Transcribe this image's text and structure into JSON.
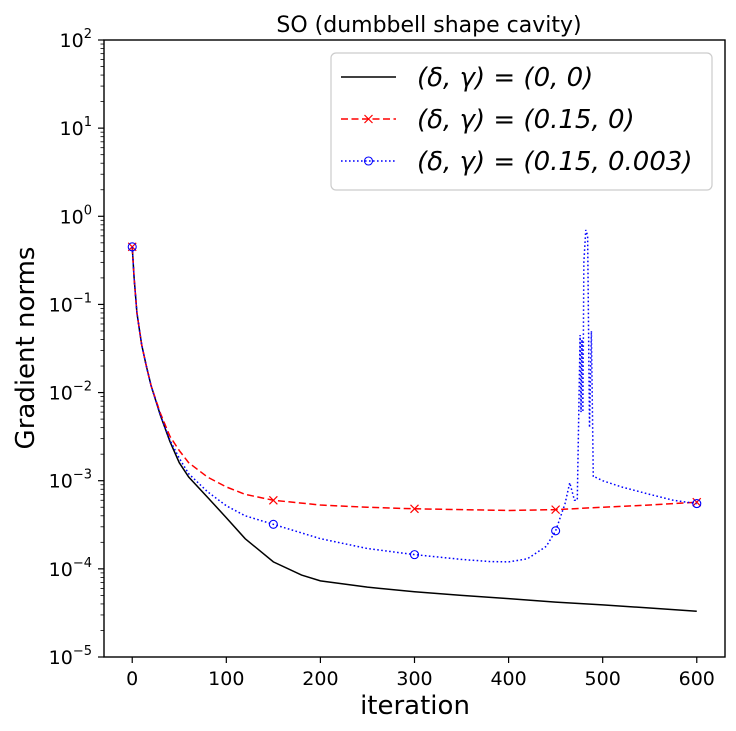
{
  "chart_data": {
    "type": "line",
    "title": "SO (dumbbell shape cavity)",
    "xlabel": "iteration",
    "ylabel": "Gradient norms",
    "yscale": "log",
    "xlim": [
      -30,
      630
    ],
    "ylim": [
      1e-05,
      100
    ],
    "xticks": [
      0,
      100,
      200,
      300,
      400,
      500,
      600
    ],
    "yticks": [
      {
        "value": 1e-05,
        "base": "10",
        "exp": "−5"
      },
      {
        "value": 0.0001,
        "base": "10",
        "exp": "−4"
      },
      {
        "value": 0.001,
        "base": "10",
        "exp": "−3"
      },
      {
        "value": 0.01,
        "base": "10",
        "exp": "−2"
      },
      {
        "value": 0.1,
        "base": "10",
        "exp": "−1"
      },
      {
        "value": 1,
        "base": "10",
        "exp": "0"
      },
      {
        "value": 10,
        "base": "10",
        "exp": "1"
      },
      {
        "value": 100,
        "base": "10",
        "exp": "2"
      }
    ],
    "legend_position": "top-right",
    "series": [
      {
        "name": "(δ, γ) = (0, 0)",
        "color": "#000000",
        "style": "solid",
        "marker": "none",
        "x": [
          0,
          2,
          5,
          10,
          15,
          20,
          30,
          40,
          50,
          60,
          80,
          100,
          120,
          150,
          180,
          200,
          250,
          300,
          350,
          400,
          450,
          500,
          550,
          600
        ],
        "y": [
          0.45,
          0.2,
          0.08,
          0.035,
          0.02,
          0.012,
          0.0055,
          0.0028,
          0.0016,
          0.0011,
          0.00065,
          0.00038,
          0.00022,
          0.00012,
          8.5e-05,
          7.3e-05,
          6.2e-05,
          5.5e-05,
          5e-05,
          4.6e-05,
          4.2e-05,
          3.9e-05,
          3.6e-05,
          3.3e-05
        ]
      },
      {
        "name": "(δ, γ) = (0.15, 0)",
        "color": "#ff0000",
        "style": "dashed",
        "marker": "x",
        "x": [
          0,
          2,
          5,
          10,
          15,
          20,
          30,
          40,
          50,
          60,
          80,
          100,
          120,
          150,
          200,
          250,
          300,
          350,
          400,
          450,
          500,
          550,
          600
        ],
        "y": [
          0.45,
          0.2,
          0.08,
          0.035,
          0.02,
          0.012,
          0.0058,
          0.0032,
          0.0022,
          0.0016,
          0.0011,
          0.00085,
          0.0007,
          0.0006,
          0.00053,
          0.0005,
          0.00048,
          0.00047,
          0.00046,
          0.00047,
          0.0005,
          0.00053,
          0.00057
        ],
        "marker_x": [
          0,
          150,
          300,
          450,
          600
        ],
        "marker_y": [
          0.45,
          0.0006,
          0.00048,
          0.00047,
          0.00057
        ]
      },
      {
        "name": "(δ, γ) = (0.15, 0.003)",
        "color": "#0000ff",
        "style": "dotted",
        "marker": "o",
        "x": [
          0,
          2,
          5,
          10,
          15,
          20,
          30,
          40,
          50,
          60,
          80,
          100,
          120,
          150,
          200,
          250,
          300,
          350,
          380,
          400,
          420,
          440,
          450,
          460,
          465,
          470,
          473,
          476,
          477,
          478,
          479,
          480,
          482,
          484,
          486,
          488,
          490,
          492,
          500,
          520,
          550,
          575,
          600
        ],
        "y": [
          0.45,
          0.2,
          0.08,
          0.035,
          0.02,
          0.012,
          0.0055,
          0.0029,
          0.0018,
          0.0012,
          0.00075,
          0.00052,
          0.0004,
          0.00032,
          0.00022,
          0.00017,
          0.000145,
          0.000128,
          0.000121,
          0.00012,
          0.00013,
          0.00018,
          0.00027,
          0.00055,
          0.00095,
          0.0006,
          0.0006,
          0.045,
          0.006,
          0.04,
          0.006,
          0.3,
          0.7,
          0.6,
          0.004,
          0.05,
          0.0011,
          0.0011,
          0.001,
          0.00085,
          0.0007,
          0.0006,
          0.00055
        ],
        "marker_x": [
          0,
          150,
          300,
          450,
          600
        ],
        "marker_y": [
          0.45,
          0.00032,
          0.000145,
          0.00027,
          0.00055
        ]
      }
    ]
  }
}
